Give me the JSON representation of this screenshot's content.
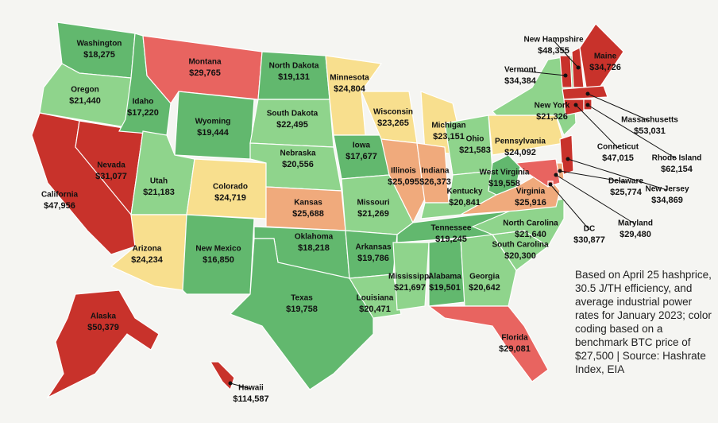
{
  "states": [
    {
      "name": "Washington",
      "value": "$18,275",
      "color": "#62b86e"
    },
    {
      "name": "Oregon",
      "value": "$21,440",
      "color": "#8fd48c"
    },
    {
      "name": "California",
      "value": "$47,956",
      "color": "#c8322b"
    },
    {
      "name": "Nevada",
      "value": "$31,077",
      "color": "#c8322b"
    },
    {
      "name": "Idaho",
      "value": "$17,220",
      "color": "#62b86e"
    },
    {
      "name": "Montana",
      "value": "$29,765",
      "color": "#e86460"
    },
    {
      "name": "Wyoming",
      "value": "$19,444",
      "color": "#62b86e"
    },
    {
      "name": "Utah",
      "value": "$21,183",
      "color": "#8fd48c"
    },
    {
      "name": "Arizona",
      "value": "$24,234",
      "color": "#f8df8e"
    },
    {
      "name": "Colorado",
      "value": "$24,719",
      "color": "#f8df8e"
    },
    {
      "name": "New Mexico",
      "value": "$16,850",
      "color": "#62b86e"
    },
    {
      "name": "North Dakota",
      "value": "$19,131",
      "color": "#62b86e"
    },
    {
      "name": "South Dakota",
      "value": "$22,495",
      "color": "#8fd48c"
    },
    {
      "name": "Nebraska",
      "value": "$20,556",
      "color": "#8fd48c"
    },
    {
      "name": "Kansas",
      "value": "$25,688",
      "color": "#f0aa7c"
    },
    {
      "name": "Oklahoma",
      "value": "$18,218",
      "color": "#62b86e"
    },
    {
      "name": "Texas",
      "value": "$19,758",
      "color": "#62b86e"
    },
    {
      "name": "Minnesota",
      "value": "$24,804",
      "color": "#f8df8e"
    },
    {
      "name": "Iowa",
      "value": "$17,677",
      "color": "#62b86e"
    },
    {
      "name": "Missouri",
      "value": "$21,269",
      "color": "#8fd48c"
    },
    {
      "name": "Arkansas",
      "value": "$19,786",
      "color": "#62b86e"
    },
    {
      "name": "Louisiana",
      "value": "$20,471",
      "color": "#8fd48c"
    },
    {
      "name": "Wisconsin",
      "value": "$23,265",
      "color": "#f8df8e"
    },
    {
      "name": "Illinois",
      "value": "$25,095",
      "color": "#f0aa7c"
    },
    {
      "name": "Michigan",
      "value": "$23,151",
      "color": "#f8df8e"
    },
    {
      "name": "Indiana",
      "value": "$26,373",
      "color": "#f0aa7c"
    },
    {
      "name": "Ohio",
      "value": "$21,583",
      "color": "#8fd48c"
    },
    {
      "name": "Kentucky",
      "value": "$20,841",
      "color": "#8fd48c"
    },
    {
      "name": "Tennessee",
      "value": "$19,245",
      "color": "#62b86e"
    },
    {
      "name": "Mississippi",
      "value": "$21,697",
      "color": "#8fd48c"
    },
    {
      "name": "Alabama",
      "value": "$19,501",
      "color": "#62b86e"
    },
    {
      "name": "Georgia",
      "value": "$20,642",
      "color": "#8fd48c"
    },
    {
      "name": "Florida",
      "value": "$29,081",
      "color": "#e86460"
    },
    {
      "name": "South Carolina",
      "value": "$20,300",
      "color": "#8fd48c"
    },
    {
      "name": "North Carolina",
      "value": "$21,640",
      "color": "#8fd48c"
    },
    {
      "name": "Virginia",
      "value": "$25,916",
      "color": "#f0aa7c"
    },
    {
      "name": "West Virginia",
      "value": "$19,558",
      "color": "#62b86e"
    },
    {
      "name": "Pennsylvania",
      "value": "$24,092",
      "color": "#f8df8e"
    },
    {
      "name": "New York",
      "value": "$21,326",
      "color": "#8fd48c"
    },
    {
      "name": "Vermont",
      "value": "$34,384",
      "color": "#c8322b"
    },
    {
      "name": "New Hampshire",
      "value": "$48,355",
      "color": "#c8322b"
    },
    {
      "name": "Maine",
      "value": "$34,726",
      "color": "#c8322b"
    },
    {
      "name": "Massachusetts",
      "value": "$53,031",
      "color": "#c8322b"
    },
    {
      "name": "Conneticut",
      "value": "$47,015",
      "color": "#c8322b"
    },
    {
      "name": "Rhode Island",
      "value": "$62,154",
      "color": "#c8322b"
    },
    {
      "name": "New Jersey",
      "value": "$34,869",
      "color": "#c8322b"
    },
    {
      "name": "Delaware",
      "value": "$25,774",
      "color": "#f0aa7c"
    },
    {
      "name": "Maryland",
      "value": "$29,480",
      "color": "#e86460"
    },
    {
      "name": "DC",
      "value": "$30,877",
      "color": "#e86460"
    },
    {
      "name": "Alaska",
      "value": "$50,379",
      "color": "#c8322b"
    },
    {
      "name": "Hawaii",
      "value": "$114,587",
      "color": "#c8322b"
    }
  ],
  "note": "Based on April 25 hashprice, 30.5 J/TH efficiency, and average industrial power rates for January 2023; color coding based on a benchmark BTC price of $27,500 | Source: Hashrate Index, EIA"
}
